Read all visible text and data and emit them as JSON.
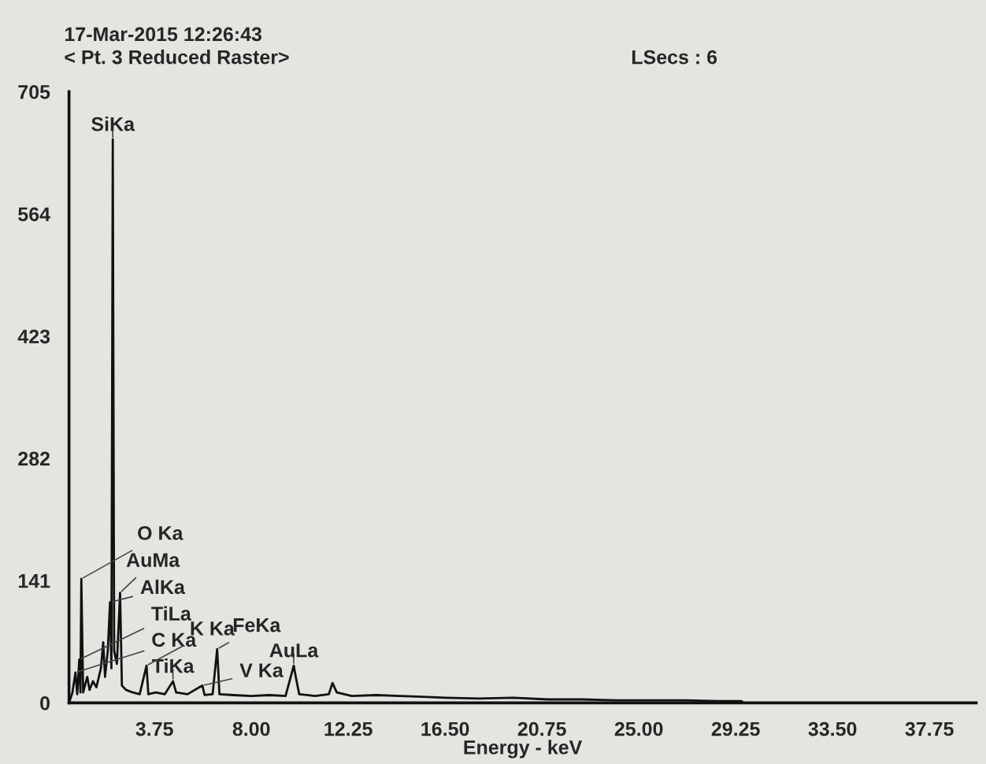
{
  "chart_data": {
    "type": "line",
    "title": "17-Mar-2015 12:26:43",
    "subtitle": "< Pt. 3 Reduced Raster>",
    "xlabel": "Energy - keV",
    "annotations": [
      "LSecs : 6",
      {
        "text": "SiKa",
        "x": 1.92,
        "y": 650
      },
      {
        "text": "AlKa",
        "x": 1.8,
        "y": 116
      },
      {
        "text": "O Ka",
        "x": 0.54,
        "y": 143
      },
      {
        "text": "AuMa",
        "x": 2.24,
        "y": 127
      },
      {
        "text": "FeKa",
        "x": 6.5,
        "y": 62
      },
      {
        "text": "K Ka",
        "x": 3.4,
        "y": 43
      },
      {
        "text": "V Ka",
        "x": 5.85,
        "y": 20
      },
      {
        "text": "AuLa",
        "x": 9.86,
        "y": 43
      },
      {
        "text": "TiLa",
        "x": 0.45,
        "y": 50
      },
      {
        "text": "TiKa",
        "x": 4.56,
        "y": 25
      },
      {
        "text": "C Ka",
        "x": 0.28,
        "y": 35
      }
    ],
    "x": [
      0.0,
      0.15,
      0.28,
      0.36,
      0.45,
      0.5,
      0.54,
      0.62,
      0.8,
      0.9,
      1.05,
      1.2,
      1.4,
      1.5,
      1.58,
      1.7,
      1.8,
      1.86,
      1.92,
      1.98,
      2.1,
      2.24,
      2.32,
      2.5,
      2.8,
      3.1,
      3.4,
      3.48,
      3.8,
      4.2,
      4.56,
      4.7,
      5.2,
      5.85,
      5.95,
      6.3,
      6.5,
      6.6,
      7.2,
      8.0,
      8.8,
      9.5,
      9.86,
      9.95,
      10.1,
      10.8,
      11.4,
      11.56,
      11.75,
      12.4,
      13.5,
      14.5,
      15.5,
      16.5,
      18,
      19.5,
      21,
      22.5,
      24,
      25.5,
      27,
      28.5,
      29.5,
      29.6
    ],
    "series": [
      {
        "color": "#111111",
        "values": [
          0,
          12,
          35,
          10,
          50,
          12,
          143,
          12,
          30,
          15,
          25,
          18,
          40,
          70,
          30,
          60,
          116,
          40,
          650,
          60,
          45,
          127,
          20,
          15,
          12,
          10,
          43,
          10,
          12,
          10,
          25,
          12,
          10,
          20,
          9,
          10,
          62,
          10,
          9,
          8,
          9,
          8,
          43,
          30,
          10,
          8,
          10,
          23,
          12,
          8,
          9,
          8,
          7,
          6,
          5,
          6,
          4,
          4,
          3,
          3,
          3,
          2,
          2,
          0
        ]
      }
    ],
    "xlim": [
      0,
      39.8
    ],
    "ylim": [
      0,
      705
    ],
    "xticks": [
      3.75,
      {
        "value": 8,
        "label": "8.00"
      },
      12.25,
      {
        "value": 16.5,
        "label": "16.50"
      },
      20.75,
      {
        "value": 25,
        "label": "25.00"
      },
      29.25,
      {
        "value": 33.5,
        "label": "33.50"
      },
      37.75
    ],
    "yticks": [
      0,
      141,
      282,
      423,
      564,
      705
    ],
    "grid": false,
    "legend": false,
    "marker": "none",
    "line_style": "solid"
  }
}
